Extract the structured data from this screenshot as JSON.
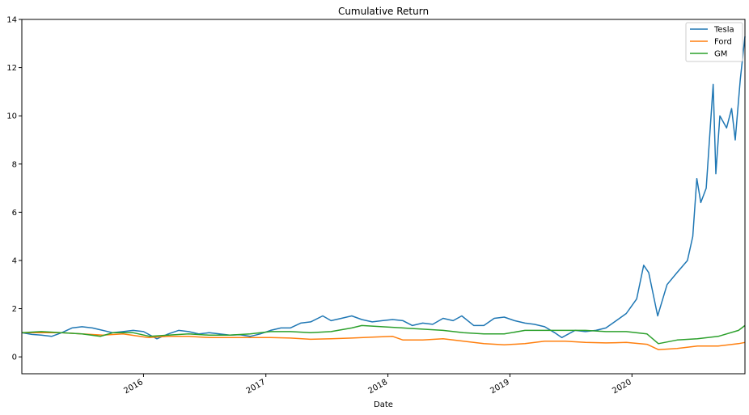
{
  "chart_data": {
    "type": "line",
    "title": "Cumulative Return",
    "xlabel": "Date",
    "ylabel": "",
    "xlim": [
      "2015-01-02",
      "2020-12-04"
    ],
    "ylim": [
      -0.7,
      14
    ],
    "yticks": [
      0,
      2,
      4,
      6,
      8,
      10,
      12,
      14
    ],
    "xticks": [
      {
        "label": "2016",
        "date": "2016-01-01"
      },
      {
        "label": "2017",
        "date": "2017-01-01"
      },
      {
        "label": "2018",
        "date": "2018-01-01"
      },
      {
        "label": "2019",
        "date": "2019-01-01"
      },
      {
        "label": "2020",
        "date": "2020-01-01"
      }
    ],
    "grid": false,
    "legend_position": "top-right",
    "series": [
      {
        "name": "Tesla",
        "color": "#1f77b4",
        "points": [
          [
            "2015-01-02",
            1.0
          ],
          [
            "2015-02-01",
            0.93
          ],
          [
            "2015-03-01",
            0.9
          ],
          [
            "2015-04-01",
            0.85
          ],
          [
            "2015-05-01",
            1.0
          ],
          [
            "2015-06-01",
            1.2
          ],
          [
            "2015-07-01",
            1.25
          ],
          [
            "2015-08-01",
            1.2
          ],
          [
            "2015-09-01",
            1.1
          ],
          [
            "2015-10-01",
            1.0
          ],
          [
            "2015-11-01",
            1.05
          ],
          [
            "2015-12-01",
            1.1
          ],
          [
            "2016-01-01",
            1.05
          ],
          [
            "2016-02-10",
            0.75
          ],
          [
            "2016-03-15",
            0.95
          ],
          [
            "2016-04-15",
            1.1
          ],
          [
            "2016-05-15",
            1.05
          ],
          [
            "2016-06-15",
            0.95
          ],
          [
            "2016-07-15",
            1.0
          ],
          [
            "2016-08-15",
            0.95
          ],
          [
            "2016-09-15",
            0.9
          ],
          [
            "2016-10-15",
            0.92
          ],
          [
            "2016-11-15",
            0.85
          ],
          [
            "2016-12-15",
            0.95
          ],
          [
            "2017-01-15",
            1.1
          ],
          [
            "2017-02-15",
            1.2
          ],
          [
            "2017-03-15",
            1.2
          ],
          [
            "2017-04-15",
            1.4
          ],
          [
            "2017-05-15",
            1.45
          ],
          [
            "2017-06-20",
            1.7
          ],
          [
            "2017-07-15",
            1.5
          ],
          [
            "2017-08-15",
            1.6
          ],
          [
            "2017-09-15",
            1.7
          ],
          [
            "2017-10-15",
            1.55
          ],
          [
            "2017-11-15",
            1.45
          ],
          [
            "2017-12-15",
            1.5
          ],
          [
            "2018-01-15",
            1.55
          ],
          [
            "2018-02-15",
            1.5
          ],
          [
            "2018-03-15",
            1.3
          ],
          [
            "2018-04-15",
            1.4
          ],
          [
            "2018-05-15",
            1.35
          ],
          [
            "2018-06-15",
            1.6
          ],
          [
            "2018-07-15",
            1.5
          ],
          [
            "2018-08-10",
            1.7
          ],
          [
            "2018-09-15",
            1.3
          ],
          [
            "2018-10-15",
            1.3
          ],
          [
            "2018-11-15",
            1.6
          ],
          [
            "2018-12-15",
            1.65
          ],
          [
            "2019-01-15",
            1.5
          ],
          [
            "2019-02-15",
            1.4
          ],
          [
            "2019-03-15",
            1.35
          ],
          [
            "2019-04-15",
            1.25
          ],
          [
            "2019-05-15",
            1.0
          ],
          [
            "2019-06-05",
            0.8
          ],
          [
            "2019-07-15",
            1.1
          ],
          [
            "2019-08-15",
            1.05
          ],
          [
            "2019-09-15",
            1.1
          ],
          [
            "2019-10-15",
            1.2
          ],
          [
            "2019-11-15",
            1.5
          ],
          [
            "2019-12-15",
            1.8
          ],
          [
            "2020-01-15",
            2.4
          ],
          [
            "2020-02-05",
            3.8
          ],
          [
            "2020-02-20",
            3.5
          ],
          [
            "2020-03-18",
            1.7
          ],
          [
            "2020-04-15",
            3.0
          ],
          [
            "2020-05-15",
            3.5
          ],
          [
            "2020-06-15",
            4.0
          ],
          [
            "2020-07-01",
            5.0
          ],
          [
            "2020-07-13",
            7.4
          ],
          [
            "2020-07-25",
            6.4
          ],
          [
            "2020-08-10",
            7.0
          ],
          [
            "2020-08-31",
            11.3
          ],
          [
            "2020-09-08",
            7.6
          ],
          [
            "2020-09-20",
            10.0
          ],
          [
            "2020-10-10",
            9.5
          ],
          [
            "2020-10-25",
            10.3
          ],
          [
            "2020-11-05",
            9.0
          ],
          [
            "2020-11-20",
            11.5
          ],
          [
            "2020-12-04",
            13.3
          ]
        ]
      },
      {
        "name": "Ford",
        "color": "#ff7f0e",
        "points": [
          [
            "2015-01-02",
            1.0
          ],
          [
            "2015-03-01",
            1.0
          ],
          [
            "2015-05-01",
            1.0
          ],
          [
            "2015-07-01",
            0.95
          ],
          [
            "2015-09-01",
            0.9
          ],
          [
            "2015-11-01",
            0.95
          ],
          [
            "2016-01-15",
            0.8
          ],
          [
            "2016-03-15",
            0.85
          ],
          [
            "2016-05-15",
            0.85
          ],
          [
            "2016-07-15",
            0.8
          ],
          [
            "2016-09-15",
            0.8
          ],
          [
            "2016-11-15",
            0.8
          ],
          [
            "2017-01-15",
            0.8
          ],
          [
            "2017-03-15",
            0.78
          ],
          [
            "2017-05-15",
            0.73
          ],
          [
            "2017-07-15",
            0.75
          ],
          [
            "2017-09-15",
            0.78
          ],
          [
            "2017-11-15",
            0.82
          ],
          [
            "2018-01-15",
            0.85
          ],
          [
            "2018-02-15",
            0.7
          ],
          [
            "2018-04-15",
            0.7
          ],
          [
            "2018-06-15",
            0.75
          ],
          [
            "2018-08-15",
            0.65
          ],
          [
            "2018-10-15",
            0.55
          ],
          [
            "2018-12-15",
            0.5
          ],
          [
            "2019-02-15",
            0.55
          ],
          [
            "2019-04-15",
            0.65
          ],
          [
            "2019-06-15",
            0.65
          ],
          [
            "2019-08-15",
            0.6
          ],
          [
            "2019-10-15",
            0.58
          ],
          [
            "2019-12-15",
            0.6
          ],
          [
            "2020-02-15",
            0.52
          ],
          [
            "2020-03-20",
            0.3
          ],
          [
            "2020-05-15",
            0.35
          ],
          [
            "2020-07-15",
            0.45
          ],
          [
            "2020-09-15",
            0.45
          ],
          [
            "2020-11-15",
            0.55
          ],
          [
            "2020-12-04",
            0.6
          ]
        ]
      },
      {
        "name": "GM",
        "color": "#2ca02c",
        "points": [
          [
            "2015-01-02",
            1.0
          ],
          [
            "2015-03-01",
            1.05
          ],
          [
            "2015-05-01",
            1.0
          ],
          [
            "2015-07-01",
            0.95
          ],
          [
            "2015-08-25",
            0.85
          ],
          [
            "2015-10-01",
            1.0
          ],
          [
            "2015-12-01",
            1.0
          ],
          [
            "2016-01-20",
            0.85
          ],
          [
            "2016-03-15",
            0.9
          ],
          [
            "2016-05-15",
            0.95
          ],
          [
            "2016-07-15",
            0.9
          ],
          [
            "2016-09-15",
            0.9
          ],
          [
            "2016-11-15",
            0.95
          ],
          [
            "2017-01-15",
            1.05
          ],
          [
            "2017-03-15",
            1.05
          ],
          [
            "2017-05-15",
            1.0
          ],
          [
            "2017-07-15",
            1.05
          ],
          [
            "2017-09-15",
            1.2
          ],
          [
            "2017-10-15",
            1.3
          ],
          [
            "2017-12-15",
            1.25
          ],
          [
            "2018-02-15",
            1.2
          ],
          [
            "2018-04-15",
            1.15
          ],
          [
            "2018-06-15",
            1.1
          ],
          [
            "2018-08-15",
            1.0
          ],
          [
            "2018-10-15",
            0.95
          ],
          [
            "2018-12-15",
            0.95
          ],
          [
            "2019-02-15",
            1.1
          ],
          [
            "2019-04-15",
            1.1
          ],
          [
            "2019-06-15",
            1.1
          ],
          [
            "2019-08-15",
            1.1
          ],
          [
            "2019-10-15",
            1.05
          ],
          [
            "2019-12-15",
            1.05
          ],
          [
            "2020-02-15",
            0.95
          ],
          [
            "2020-03-20",
            0.55
          ],
          [
            "2020-05-15",
            0.7
          ],
          [
            "2020-07-15",
            0.75
          ],
          [
            "2020-09-15",
            0.85
          ],
          [
            "2020-11-15",
            1.1
          ],
          [
            "2020-12-04",
            1.3
          ]
        ]
      }
    ]
  }
}
